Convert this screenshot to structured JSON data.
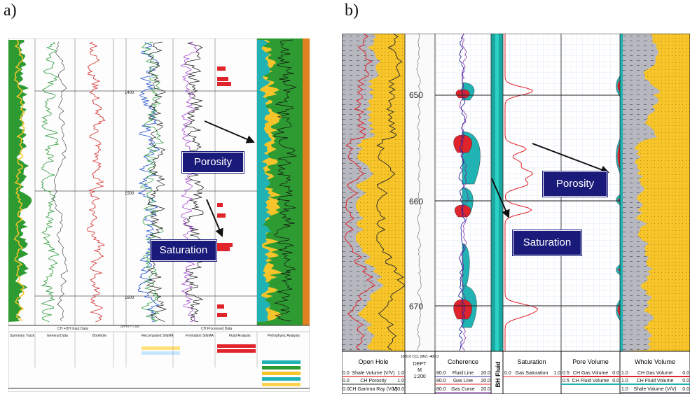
{
  "panel_a": {
    "label": "a)",
    "depth_marks": [
      "1400",
      "1500",
      "1600"
    ],
    "callouts": {
      "porosity": "Porosity",
      "saturation": "Saturation"
    },
    "footer": {
      "group_left": "CH +OH Input Data",
      "group_right": "CH Processed Data",
      "columns": [
        "Summary Track",
        "General Data",
        "Borehole",
        "DEPTH FT 1:500",
        "Recomputed SIGMA",
        "Formation SIGMA",
        "Fluid Analysis",
        "Petrophysic Analysis"
      ]
    }
  },
  "panel_b": {
    "label": "b)",
    "depth_marks": [
      "650",
      "660",
      "670"
    ],
    "callouts": {
      "porosity": "Porosity",
      "saturation": "Saturation"
    },
    "footer": {
      "open_hole": {
        "title": "Open Hole",
        "rows": [
          {
            "left": "0.0",
            "name": "Shale Volume (V/V)",
            "right": "1.0"
          },
          {
            "left": "0.0",
            "name": "CH Porosity",
            "right": "1.0"
          },
          {
            "left": "0.0",
            "name": "CH Gamma Ray (V/V)",
            "right": "150.0"
          }
        ]
      },
      "depth": {
        "scale": "1000.0 CCL (MV) -400.0",
        "unit_lines": [
          "DEPT",
          "M",
          "1:200"
        ]
      },
      "coherence": {
        "title": "Coherence",
        "rows": [
          {
            "left": "80.0",
            "name": "Fluid Line",
            "right": "20.0"
          },
          {
            "left": "80.0",
            "name": "Gas Line",
            "right": "20.0"
          },
          {
            "left": "80.0",
            "name": "Gas Curve",
            "right": "20.0"
          }
        ]
      },
      "bh_fluid": "BH Fluid",
      "saturation": {
        "title": "Saturation",
        "rows": [
          {
            "left": "0.0",
            "name": "Gas Saturation",
            "right": "1.0"
          }
        ]
      },
      "pore_volume": {
        "title": "Pore Volume",
        "rows": [
          {
            "left": "0.5",
            "name": "CH Gas Volume",
            "right": "0.0"
          },
          {
            "left": "0.5",
            "name": "CH Fluid Volume",
            "right": "0.0"
          }
        ]
      },
      "whole_volume": {
        "title": "Whole Volume",
        "rows": [
          {
            "left": "1.0",
            "name": "CH Gas Volume",
            "right": "0.0"
          },
          {
            "left": "1.0",
            "name": "CH Fluid Volume",
            "right": "0.0"
          },
          {
            "left": "1.0",
            "name": "Shale Volume (V/V)",
            "right": "0.0"
          }
        ]
      }
    }
  },
  "colors": {
    "sand_yellow": "#f7c52a",
    "shale_grey": "#b7b7bf",
    "gas_red": "#e0242b",
    "fluid_teal": "#21b3b3",
    "matrix_green": "#2e9b32",
    "callout_navy": "#1a1a7a",
    "grid_blue": "#c8d7ea"
  },
  "chart_data": [
    {
      "type": "line",
      "panel": "a",
      "description_label": "a)",
      "y_axis": {
        "label": "DEPTH",
        "unit": "FT",
        "ticks": [
          1400,
          1500,
          1600
        ],
        "inverted": true
      },
      "tracks": [
        "Summary Track",
        "General Data",
        "Borehole",
        "Recomputed SIGMA",
        "Formation SIGMA",
        "Fluid Analysis",
        "Petrophysic Analysis"
      ],
      "annotations": [
        "Porosity",
        "Saturation"
      ]
    },
    {
      "type": "line",
      "panel": "b",
      "description_label": "b)",
      "y_axis": {
        "label": "DEPT",
        "unit": "M",
        "scale": "1:200",
        "ticks": [
          650,
          660,
          670
        ],
        "inverted": true
      },
      "tracks": [
        "Open Hole",
        "Coherence",
        "BH Fluid",
        "Saturation",
        "Pore Volume",
        "Whole Volume"
      ],
      "series": [
        {
          "name": "Gas Saturation",
          "track": "Saturation",
          "range": [
            0,
            1
          ],
          "peaks_depth_m": [
            650,
            657,
            660,
            670
          ]
        },
        {
          "name": "CH Porosity",
          "track": "Open Hole",
          "range": [
            0,
            1
          ]
        },
        {
          "name": "Shale Volume (V/V)",
          "track": "Whole Volume",
          "range": [
            1,
            0
          ]
        }
      ],
      "annotations": [
        "Porosity",
        "Saturation"
      ]
    }
  ]
}
